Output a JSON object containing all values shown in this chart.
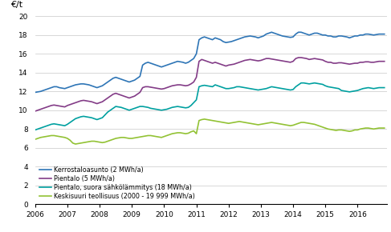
{
  "ylabel": "€/t",
  "ylim": [
    0,
    20
  ],
  "yticks": [
    0,
    2,
    4,
    6,
    8,
    10,
    12,
    14,
    16,
    18,
    20
  ],
  "xlim_start": 2006.0,
  "xlim_end": 2016.917,
  "xtick_labels": [
    "2006",
    "2007",
    "2008",
    "2009",
    "2010",
    "2011",
    "2012",
    "2013",
    "2014",
    "2015",
    "2016"
  ],
  "colors": {
    "kerrostalo": "#2E75B6",
    "pientalo": "#833C87",
    "pientalo_suora": "#00A0A0",
    "keskisuuri": "#92C234"
  },
  "legend": [
    "Kerrostaloasunto (2 MWh/a)",
    "Pientalo (5 MWh/a)",
    "Pientalo, suora sähkölämmitys (18 MWh/a)",
    "Keskisuuri teollisuus (2000 - 19 999 MWh/a)"
  ],
  "series": {
    "kerrostalo": {
      "x": [
        2006.0,
        2006.083,
        2006.167,
        2006.25,
        2006.333,
        2006.417,
        2006.5,
        2006.583,
        2006.667,
        2006.75,
        2006.833,
        2006.917,
        2007.0,
        2007.083,
        2007.167,
        2007.25,
        2007.333,
        2007.417,
        2007.5,
        2007.583,
        2007.667,
        2007.75,
        2007.833,
        2007.917,
        2008.0,
        2008.083,
        2008.167,
        2008.25,
        2008.333,
        2008.417,
        2008.5,
        2008.583,
        2008.667,
        2008.75,
        2008.833,
        2008.917,
        2009.0,
        2009.083,
        2009.167,
        2009.25,
        2009.333,
        2009.417,
        2009.5,
        2009.583,
        2009.667,
        2009.75,
        2009.833,
        2009.917,
        2010.0,
        2010.083,
        2010.167,
        2010.25,
        2010.333,
        2010.417,
        2010.5,
        2010.583,
        2010.667,
        2010.75,
        2010.833,
        2010.917,
        2011.0,
        2011.083,
        2011.167,
        2011.25,
        2011.333,
        2011.417,
        2011.5,
        2011.583,
        2011.667,
        2011.75,
        2011.833,
        2011.917,
        2012.0,
        2012.083,
        2012.167,
        2012.25,
        2012.333,
        2012.417,
        2012.5,
        2012.583,
        2012.667,
        2012.75,
        2012.833,
        2012.917,
        2013.0,
        2013.083,
        2013.167,
        2013.25,
        2013.333,
        2013.417,
        2013.5,
        2013.583,
        2013.667,
        2013.75,
        2013.833,
        2013.917,
        2014.0,
        2014.083,
        2014.167,
        2014.25,
        2014.333,
        2014.417,
        2014.5,
        2014.583,
        2014.667,
        2014.75,
        2014.833,
        2014.917,
        2015.0,
        2015.083,
        2015.167,
        2015.25,
        2015.333,
        2015.417,
        2015.5,
        2015.583,
        2015.667,
        2015.75,
        2015.833,
        2015.917,
        2016.0,
        2016.083,
        2016.167,
        2016.25,
        2016.333,
        2016.417,
        2016.5,
        2016.583,
        2016.667,
        2016.75,
        2016.833
      ],
      "y": [
        11.9,
        11.95,
        12.0,
        12.1,
        12.2,
        12.3,
        12.4,
        12.5,
        12.5,
        12.4,
        12.35,
        12.3,
        12.4,
        12.5,
        12.6,
        12.7,
        12.75,
        12.8,
        12.8,
        12.75,
        12.7,
        12.6,
        12.5,
        12.4,
        12.5,
        12.6,
        12.8,
        13.0,
        13.2,
        13.4,
        13.5,
        13.4,
        13.3,
        13.2,
        13.1,
        13.0,
        13.1,
        13.2,
        13.4,
        13.6,
        14.8,
        15.0,
        15.1,
        15.0,
        14.9,
        14.8,
        14.7,
        14.6,
        14.7,
        14.8,
        14.9,
        15.0,
        15.1,
        15.2,
        15.15,
        15.1,
        15.0,
        15.1,
        15.3,
        15.5,
        16.0,
        17.5,
        17.7,
        17.8,
        17.7,
        17.6,
        17.5,
        17.7,
        17.6,
        17.5,
        17.3,
        17.2,
        17.25,
        17.3,
        17.4,
        17.5,
        17.6,
        17.7,
        17.8,
        17.85,
        17.9,
        17.85,
        17.8,
        17.7,
        17.8,
        17.9,
        18.1,
        18.2,
        18.3,
        18.2,
        18.1,
        18.0,
        17.9,
        17.85,
        17.8,
        17.75,
        17.8,
        18.1,
        18.3,
        18.3,
        18.2,
        18.1,
        18.0,
        18.1,
        18.2,
        18.2,
        18.1,
        18.0,
        18.0,
        17.9,
        17.9,
        17.8,
        17.8,
        17.9,
        17.9,
        17.85,
        17.8,
        17.7,
        17.8,
        17.9,
        17.9,
        18.0,
        18.0,
        18.1,
        18.1,
        18.05,
        18.0,
        18.05,
        18.1,
        18.1,
        18.1
      ]
    },
    "pientalo": {
      "x": [
        2006.0,
        2006.083,
        2006.167,
        2006.25,
        2006.333,
        2006.417,
        2006.5,
        2006.583,
        2006.667,
        2006.75,
        2006.833,
        2006.917,
        2007.0,
        2007.083,
        2007.167,
        2007.25,
        2007.333,
        2007.417,
        2007.5,
        2007.583,
        2007.667,
        2007.75,
        2007.833,
        2007.917,
        2008.0,
        2008.083,
        2008.167,
        2008.25,
        2008.333,
        2008.417,
        2008.5,
        2008.583,
        2008.667,
        2008.75,
        2008.833,
        2008.917,
        2009.0,
        2009.083,
        2009.167,
        2009.25,
        2009.333,
        2009.417,
        2009.5,
        2009.583,
        2009.667,
        2009.75,
        2009.833,
        2009.917,
        2010.0,
        2010.083,
        2010.167,
        2010.25,
        2010.333,
        2010.417,
        2010.5,
        2010.583,
        2010.667,
        2010.75,
        2010.833,
        2010.917,
        2011.0,
        2011.083,
        2011.167,
        2011.25,
        2011.333,
        2011.417,
        2011.5,
        2011.583,
        2011.667,
        2011.75,
        2011.833,
        2011.917,
        2012.0,
        2012.083,
        2012.167,
        2012.25,
        2012.333,
        2012.417,
        2012.5,
        2012.583,
        2012.667,
        2012.75,
        2012.833,
        2012.917,
        2013.0,
        2013.083,
        2013.167,
        2013.25,
        2013.333,
        2013.417,
        2013.5,
        2013.583,
        2013.667,
        2013.75,
        2013.833,
        2013.917,
        2014.0,
        2014.083,
        2014.167,
        2014.25,
        2014.333,
        2014.417,
        2014.5,
        2014.583,
        2014.667,
        2014.75,
        2014.833,
        2014.917,
        2015.0,
        2015.083,
        2015.167,
        2015.25,
        2015.333,
        2015.417,
        2015.5,
        2015.583,
        2015.667,
        2015.75,
        2015.833,
        2015.917,
        2016.0,
        2016.083,
        2016.167,
        2016.25,
        2016.333,
        2016.417,
        2016.5,
        2016.583,
        2016.667,
        2016.75,
        2016.833
      ],
      "y": [
        9.9,
        10.0,
        10.1,
        10.2,
        10.3,
        10.4,
        10.5,
        10.55,
        10.5,
        10.45,
        10.4,
        10.35,
        10.5,
        10.6,
        10.7,
        10.8,
        10.9,
        11.0,
        11.05,
        11.0,
        10.95,
        10.9,
        10.8,
        10.7,
        10.8,
        10.9,
        11.1,
        11.3,
        11.5,
        11.7,
        11.8,
        11.7,
        11.6,
        11.5,
        11.4,
        11.3,
        11.4,
        11.5,
        11.7,
        11.9,
        12.4,
        12.5,
        12.5,
        12.45,
        12.4,
        12.35,
        12.3,
        12.25,
        12.3,
        12.4,
        12.5,
        12.6,
        12.65,
        12.7,
        12.7,
        12.65,
        12.6,
        12.65,
        12.8,
        13.0,
        13.5,
        15.2,
        15.4,
        15.3,
        15.2,
        15.1,
        15.0,
        15.1,
        15.0,
        14.9,
        14.8,
        14.7,
        14.8,
        14.85,
        14.9,
        15.0,
        15.1,
        15.2,
        15.3,
        15.35,
        15.4,
        15.35,
        15.3,
        15.25,
        15.3,
        15.4,
        15.5,
        15.5,
        15.45,
        15.4,
        15.35,
        15.3,
        15.25,
        15.2,
        15.15,
        15.1,
        15.2,
        15.5,
        15.6,
        15.6,
        15.55,
        15.5,
        15.4,
        15.45,
        15.5,
        15.45,
        15.4,
        15.35,
        15.2,
        15.1,
        15.1,
        15.0,
        15.0,
        15.05,
        15.05,
        15.0,
        14.95,
        14.9,
        14.95,
        15.0,
        15.0,
        15.1,
        15.1,
        15.15,
        15.15,
        15.1,
        15.1,
        15.15,
        15.2,
        15.2,
        15.2
      ]
    },
    "pientalo_suora": {
      "x": [
        2006.0,
        2006.083,
        2006.167,
        2006.25,
        2006.333,
        2006.417,
        2006.5,
        2006.583,
        2006.667,
        2006.75,
        2006.833,
        2006.917,
        2007.0,
        2007.083,
        2007.167,
        2007.25,
        2007.333,
        2007.417,
        2007.5,
        2007.583,
        2007.667,
        2007.75,
        2007.833,
        2007.917,
        2008.0,
        2008.083,
        2008.167,
        2008.25,
        2008.333,
        2008.417,
        2008.5,
        2008.583,
        2008.667,
        2008.75,
        2008.833,
        2008.917,
        2009.0,
        2009.083,
        2009.167,
        2009.25,
        2009.333,
        2009.417,
        2009.5,
        2009.583,
        2009.667,
        2009.75,
        2009.833,
        2009.917,
        2010.0,
        2010.083,
        2010.167,
        2010.25,
        2010.333,
        2010.417,
        2010.5,
        2010.583,
        2010.667,
        2010.75,
        2010.833,
        2010.917,
        2011.0,
        2011.083,
        2011.167,
        2011.25,
        2011.333,
        2011.417,
        2011.5,
        2011.583,
        2011.667,
        2011.75,
        2011.833,
        2011.917,
        2012.0,
        2012.083,
        2012.167,
        2012.25,
        2012.333,
        2012.417,
        2012.5,
        2012.583,
        2012.667,
        2012.75,
        2012.833,
        2012.917,
        2013.0,
        2013.083,
        2013.167,
        2013.25,
        2013.333,
        2013.417,
        2013.5,
        2013.583,
        2013.667,
        2013.75,
        2013.833,
        2013.917,
        2014.0,
        2014.083,
        2014.167,
        2014.25,
        2014.333,
        2014.417,
        2014.5,
        2014.583,
        2014.667,
        2014.75,
        2014.833,
        2014.917,
        2015.0,
        2015.083,
        2015.167,
        2015.25,
        2015.333,
        2015.417,
        2015.5,
        2015.583,
        2015.667,
        2015.75,
        2015.833,
        2015.917,
        2016.0,
        2016.083,
        2016.167,
        2016.25,
        2016.333,
        2016.417,
        2016.5,
        2016.583,
        2016.667,
        2016.75,
        2016.833
      ],
      "y": [
        7.9,
        8.0,
        8.1,
        8.2,
        8.3,
        8.4,
        8.5,
        8.55,
        8.5,
        8.45,
        8.4,
        8.35,
        8.5,
        8.7,
        8.9,
        9.1,
        9.2,
        9.3,
        9.35,
        9.3,
        9.25,
        9.2,
        9.1,
        9.0,
        9.1,
        9.2,
        9.5,
        9.8,
        10.0,
        10.2,
        10.4,
        10.35,
        10.3,
        10.2,
        10.1,
        10.0,
        10.1,
        10.2,
        10.3,
        10.4,
        10.4,
        10.35,
        10.3,
        10.2,
        10.15,
        10.1,
        10.05,
        10.0,
        10.05,
        10.1,
        10.2,
        10.3,
        10.35,
        10.4,
        10.35,
        10.3,
        10.25,
        10.3,
        10.5,
        10.8,
        11.1,
        12.5,
        12.6,
        12.65,
        12.6,
        12.55,
        12.5,
        12.7,
        12.6,
        12.5,
        12.4,
        12.3,
        12.3,
        12.35,
        12.4,
        12.5,
        12.5,
        12.45,
        12.4,
        12.35,
        12.3,
        12.25,
        12.2,
        12.15,
        12.2,
        12.25,
        12.3,
        12.4,
        12.5,
        12.45,
        12.4,
        12.35,
        12.3,
        12.25,
        12.2,
        12.15,
        12.2,
        12.5,
        12.7,
        12.9,
        12.9,
        12.85,
        12.8,
        12.85,
        12.9,
        12.85,
        12.8,
        12.75,
        12.6,
        12.5,
        12.45,
        12.4,
        12.35,
        12.3,
        12.1,
        12.05,
        12.0,
        11.95,
        12.0,
        12.05,
        12.1,
        12.2,
        12.3,
        12.35,
        12.4,
        12.35,
        12.3,
        12.35,
        12.4,
        12.4,
        12.4
      ]
    },
    "keskisuuri": {
      "x": [
        2006.0,
        2006.083,
        2006.167,
        2006.25,
        2006.333,
        2006.417,
        2006.5,
        2006.583,
        2006.667,
        2006.75,
        2006.833,
        2006.917,
        2007.0,
        2007.083,
        2007.167,
        2007.25,
        2007.333,
        2007.417,
        2007.5,
        2007.583,
        2007.667,
        2007.75,
        2007.833,
        2007.917,
        2008.0,
        2008.083,
        2008.167,
        2008.25,
        2008.333,
        2008.417,
        2008.5,
        2008.583,
        2008.667,
        2008.75,
        2008.833,
        2008.917,
        2009.0,
        2009.083,
        2009.167,
        2009.25,
        2009.333,
        2009.417,
        2009.5,
        2009.583,
        2009.667,
        2009.75,
        2009.833,
        2009.917,
        2010.0,
        2010.083,
        2010.167,
        2010.25,
        2010.333,
        2010.417,
        2010.5,
        2010.583,
        2010.667,
        2010.75,
        2010.833,
        2010.917,
        2011.0,
        2011.083,
        2011.167,
        2011.25,
        2011.333,
        2011.417,
        2011.5,
        2011.583,
        2011.667,
        2011.75,
        2011.833,
        2011.917,
        2012.0,
        2012.083,
        2012.167,
        2012.25,
        2012.333,
        2012.417,
        2012.5,
        2012.583,
        2012.667,
        2012.75,
        2012.833,
        2012.917,
        2013.0,
        2013.083,
        2013.167,
        2013.25,
        2013.333,
        2013.417,
        2013.5,
        2013.583,
        2013.667,
        2013.75,
        2013.833,
        2013.917,
        2014.0,
        2014.083,
        2014.167,
        2014.25,
        2014.333,
        2014.417,
        2014.5,
        2014.583,
        2014.667,
        2014.75,
        2014.833,
        2014.917,
        2015.0,
        2015.083,
        2015.167,
        2015.25,
        2015.333,
        2015.417,
        2015.5,
        2015.583,
        2015.667,
        2015.75,
        2015.833,
        2015.917,
        2016.0,
        2016.083,
        2016.167,
        2016.25,
        2016.333,
        2016.417,
        2016.5,
        2016.583,
        2016.667,
        2016.75,
        2016.833
      ],
      "y": [
        6.9,
        7.0,
        7.1,
        7.15,
        7.2,
        7.25,
        7.3,
        7.3,
        7.25,
        7.2,
        7.15,
        7.1,
        7.0,
        6.8,
        6.5,
        6.4,
        6.45,
        6.5,
        6.55,
        6.6,
        6.65,
        6.7,
        6.7,
        6.65,
        6.6,
        6.55,
        6.6,
        6.7,
        6.8,
        6.9,
        7.0,
        7.05,
        7.1,
        7.1,
        7.05,
        7.0,
        7.0,
        7.05,
        7.1,
        7.15,
        7.2,
        7.25,
        7.3,
        7.3,
        7.25,
        7.2,
        7.15,
        7.1,
        7.2,
        7.3,
        7.4,
        7.5,
        7.55,
        7.6,
        7.6,
        7.55,
        7.5,
        7.55,
        7.7,
        7.8,
        7.5,
        8.9,
        9.0,
        9.05,
        9.0,
        8.95,
        8.9,
        8.85,
        8.8,
        8.75,
        8.7,
        8.65,
        8.6,
        8.65,
        8.7,
        8.75,
        8.8,
        8.75,
        8.7,
        8.65,
        8.6,
        8.55,
        8.5,
        8.45,
        8.5,
        8.55,
        8.6,
        8.65,
        8.7,
        8.65,
        8.6,
        8.55,
        8.5,
        8.45,
        8.4,
        8.35,
        8.4,
        8.5,
        8.6,
        8.7,
        8.7,
        8.65,
        8.6,
        8.55,
        8.5,
        8.4,
        8.3,
        8.2,
        8.1,
        8.0,
        7.95,
        7.9,
        7.85,
        7.9,
        7.9,
        7.85,
        7.8,
        7.75,
        7.8,
        7.9,
        7.9,
        8.0,
        8.05,
        8.1,
        8.1,
        8.05,
        8.0,
        8.05,
        8.1,
        8.1,
        8.1
      ]
    }
  },
  "background_color": "#ffffff",
  "grid_color": "#c8c8c8",
  "line_width": 1.2,
  "legend_fontsize": 5.8
}
